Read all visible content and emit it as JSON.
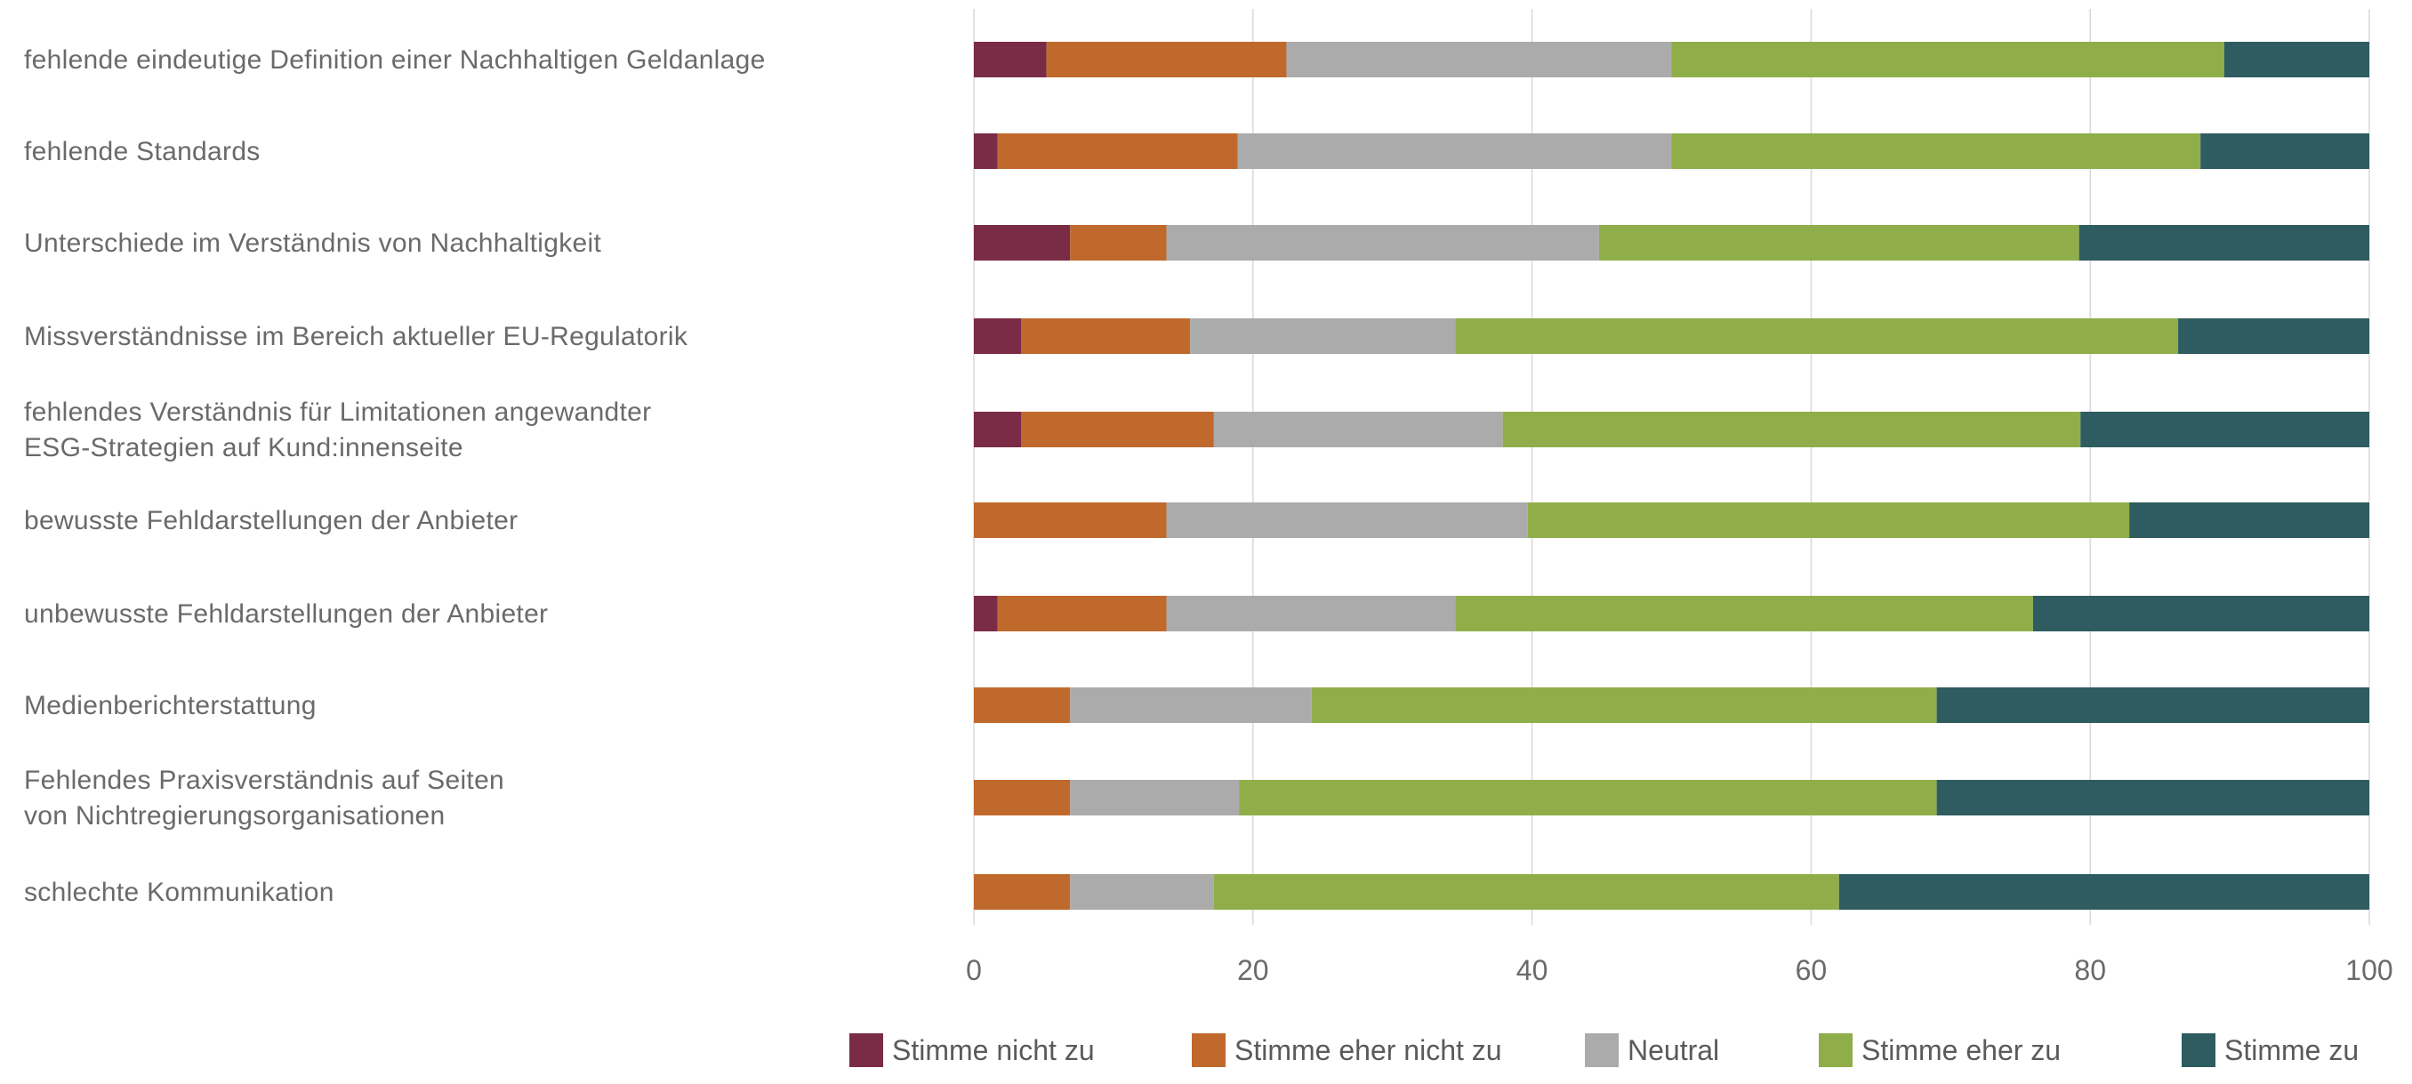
{
  "chart_data": {
    "type": "bar",
    "orientation": "horizontal",
    "stacked": true,
    "categories": [
      "fehlende eindeutige Definition einer Nachhaltigen Geldanlage",
      "fehlende Standards",
      "Unterschiede im Verständnis von Nachhaltigkeit",
      "Missverständnisse im Bereich aktueller EU-Regulatorik",
      "fehlendes Verständnis für Limitationen angewandter\nESG-Strategien auf Kund:innenseite",
      "bewusste Fehldarstellungen der Anbieter",
      "unbewusste Fehldarstellungen der Anbieter",
      "Medienberichterstattung",
      "Fehlendes Praxisverständnis auf Seiten\nvon Nichtregierungsorganisationen",
      "schlechte Kommunikation"
    ],
    "series": [
      {
        "name": "Stimme nicht zu",
        "color": "#7a2b45",
        "values": [
          5.2,
          1.7,
          6.9,
          3.4,
          3.4,
          0,
          1.7,
          0,
          0,
          0
        ]
      },
      {
        "name": "Stimme eher nicht zu",
        "color": "#c0692d",
        "values": [
          17.2,
          17.2,
          6.9,
          12.1,
          13.8,
          13.8,
          12.1,
          6.9,
          6.9,
          6.9
        ]
      },
      {
        "name": "Neutral",
        "color": "#ababab",
        "values": [
          27.6,
          31.1,
          31.0,
          19.0,
          20.7,
          25.9,
          20.7,
          17.3,
          12.1,
          10.3
        ]
      },
      {
        "name": "Stimme eher zu",
        "color": "#8fae4a",
        "values": [
          39.6,
          37.9,
          34.4,
          51.8,
          41.4,
          43.1,
          41.4,
          44.8,
          50.0,
          44.8
        ]
      },
      {
        "name": "Stimme zu",
        "color": "#2e5c60",
        "values": [
          10.4,
          12.1,
          20.8,
          13.7,
          20.7,
          17.2,
          24.1,
          31.0,
          31.0,
          38.0
        ]
      }
    ],
    "xlim": [
      0,
      100
    ],
    "xticks": [
      0,
      20,
      40,
      60,
      80,
      100
    ],
    "grid": true,
    "legend_position": "bottom-right",
    "title": "",
    "xlabel": "",
    "ylabel": ""
  }
}
